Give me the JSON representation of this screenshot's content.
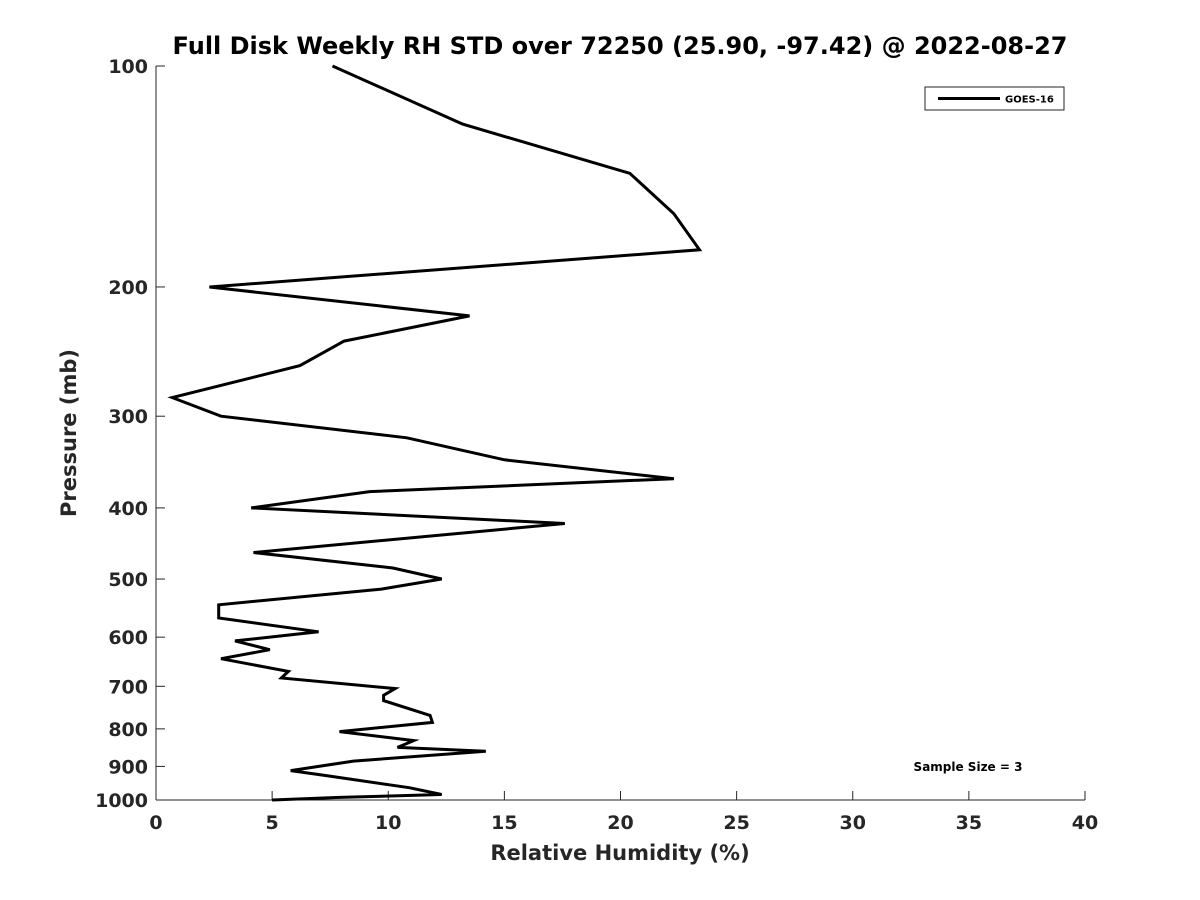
{
  "chart_data": {
    "type": "line",
    "title": "Full Disk Weekly RH STD over 72250 (25.90, -97.42) @ 2022-08-27",
    "xlabel": "Relative Humidity (%)",
    "ylabel": "Pressure (mb)",
    "xlim": [
      0,
      40
    ],
    "ylim": [
      100,
      1000
    ],
    "yscale": "log",
    "y_reversed": true,
    "xticks": [
      "0",
      "5",
      "10",
      "15",
      "20",
      "25",
      "30",
      "35",
      "40"
    ],
    "yticks": [
      "100",
      "200",
      "300",
      "400",
      "500",
      "600",
      "700",
      "800",
      "900",
      "1000"
    ],
    "grid": false,
    "legend": {
      "position": "top-right",
      "entries": [
        "GOES-16"
      ]
    },
    "annotation": "Sample Size = 3",
    "series": [
      {
        "name": "GOES-16",
        "color": "#000000",
        "points": [
          [
            7.6,
            100
          ],
          [
            13.2,
            120
          ],
          [
            20.4,
            140
          ],
          [
            22.3,
            159
          ],
          [
            23.4,
            178
          ],
          [
            2.3,
            200
          ],
          [
            13.5,
            219
          ],
          [
            8.1,
            237
          ],
          [
            6.2,
            256
          ],
          [
            0.7,
            283
          ],
          [
            2.8,
            300
          ],
          [
            10.8,
            321
          ],
          [
            15.0,
            344
          ],
          [
            22.3,
            365
          ],
          [
            9.2,
            380
          ],
          [
            4.1,
            400
          ],
          [
            17.6,
            420
          ],
          [
            4.2,
            460
          ],
          [
            10.2,
            483
          ],
          [
            12.3,
            500
          ],
          [
            9.7,
            516
          ],
          [
            2.7,
            542
          ],
          [
            2.7,
            565
          ],
          [
            7.0,
            590
          ],
          [
            3.4,
            607
          ],
          [
            4.9,
            624
          ],
          [
            2.8,
            642
          ],
          [
            5.7,
            668
          ],
          [
            5.4,
            682
          ],
          [
            10.3,
            705
          ],
          [
            9.8,
            720
          ],
          [
            9.8,
            732
          ],
          [
            11.8,
            767
          ],
          [
            11.9,
            784
          ],
          [
            7.9,
            807
          ],
          [
            11.1,
            830
          ],
          [
            10.4,
            848
          ],
          [
            14.2,
            858
          ],
          [
            8.5,
            885
          ],
          [
            5.8,
            912
          ],
          [
            7.3,
            926
          ],
          [
            10.9,
            962
          ],
          [
            12.3,
            983
          ],
          [
            7.9,
            992
          ],
          [
            5.0,
            1000
          ]
        ]
      }
    ]
  }
}
